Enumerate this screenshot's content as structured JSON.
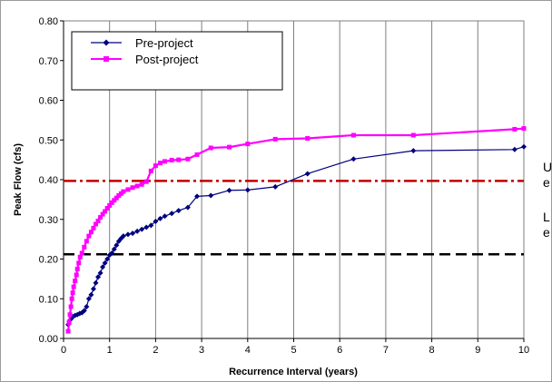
{
  "chart_data": {
    "type": "line",
    "title": "",
    "xlabel": "Recurrence Interval (years)",
    "ylabel": "Peak Flow (cfs)",
    "xlim": [
      0,
      10
    ],
    "ylim": [
      0,
      0.8
    ],
    "x_ticks": [
      "0",
      "1",
      "2",
      "3",
      "4",
      "5",
      "6",
      "7",
      "8",
      "9",
      "10"
    ],
    "y_ticks": [
      "0.00",
      "0.10",
      "0.20",
      "0.30",
      "0.40",
      "0.50",
      "0.60",
      "0.70",
      "0.80"
    ],
    "grid": "vertical gridlines",
    "legend_position": "top-left",
    "series": [
      {
        "name": "Pre-project",
        "color": "#000080",
        "marker": "diamond",
        "points": [
          [
            0.1,
            0.035
          ],
          [
            0.13,
            0.045
          ],
          [
            0.17,
            0.05
          ],
          [
            0.2,
            0.055
          ],
          [
            0.25,
            0.058
          ],
          [
            0.3,
            0.06
          ],
          [
            0.35,
            0.063
          ],
          [
            0.4,
            0.065
          ],
          [
            0.45,
            0.07
          ],
          [
            0.5,
            0.08
          ],
          [
            0.55,
            0.1
          ],
          [
            0.6,
            0.11
          ],
          [
            0.65,
            0.125
          ],
          [
            0.7,
            0.14
          ],
          [
            0.75,
            0.155
          ],
          [
            0.8,
            0.165
          ],
          [
            0.85,
            0.18
          ],
          [
            0.9,
            0.19
          ],
          [
            0.95,
            0.2
          ],
          [
            1.0,
            0.21
          ],
          [
            1.05,
            0.215
          ],
          [
            1.1,
            0.225
          ],
          [
            1.15,
            0.235
          ],
          [
            1.2,
            0.245
          ],
          [
            1.25,
            0.252
          ],
          [
            1.3,
            0.258
          ],
          [
            1.4,
            0.262
          ],
          [
            1.5,
            0.265
          ],
          [
            1.6,
            0.27
          ],
          [
            1.7,
            0.275
          ],
          [
            1.8,
            0.28
          ],
          [
            1.9,
            0.285
          ],
          [
            2.0,
            0.295
          ],
          [
            2.1,
            0.302
          ],
          [
            2.2,
            0.308
          ],
          [
            2.35,
            0.315
          ],
          [
            2.5,
            0.322
          ],
          [
            2.7,
            0.33
          ],
          [
            2.9,
            0.358
          ],
          [
            3.2,
            0.36
          ],
          [
            3.6,
            0.373
          ],
          [
            4.0,
            0.374
          ],
          [
            4.6,
            0.382
          ],
          [
            5.3,
            0.415
          ],
          [
            6.3,
            0.452
          ],
          [
            7.6,
            0.473
          ],
          [
            9.8,
            0.476
          ],
          [
            10.0,
            0.483
          ]
        ]
      },
      {
        "name": "Post-project",
        "color": "#ff00ff",
        "marker": "square",
        "points": [
          [
            0.1,
            0.018
          ],
          [
            0.12,
            0.04
          ],
          [
            0.14,
            0.06
          ],
          [
            0.16,
            0.08
          ],
          [
            0.18,
            0.1
          ],
          [
            0.2,
            0.115
          ],
          [
            0.22,
            0.13
          ],
          [
            0.25,
            0.145
          ],
          [
            0.28,
            0.16
          ],
          [
            0.3,
            0.175
          ],
          [
            0.33,
            0.19
          ],
          [
            0.36,
            0.205
          ],
          [
            0.4,
            0.215
          ],
          [
            0.45,
            0.23
          ],
          [
            0.5,
            0.245
          ],
          [
            0.55,
            0.258
          ],
          [
            0.6,
            0.268
          ],
          [
            0.65,
            0.278
          ],
          [
            0.7,
            0.288
          ],
          [
            0.75,
            0.296
          ],
          [
            0.8,
            0.305
          ],
          [
            0.85,
            0.313
          ],
          [
            0.9,
            0.32
          ],
          [
            0.95,
            0.328
          ],
          [
            1.0,
            0.335
          ],
          [
            1.05,
            0.342
          ],
          [
            1.1,
            0.348
          ],
          [
            1.15,
            0.354
          ],
          [
            1.2,
            0.36
          ],
          [
            1.25,
            0.365
          ],
          [
            1.3,
            0.37
          ],
          [
            1.4,
            0.375
          ],
          [
            1.5,
            0.38
          ],
          [
            1.6,
            0.384
          ],
          [
            1.7,
            0.388
          ],
          [
            1.8,
            0.395
          ],
          [
            1.9,
            0.422
          ],
          [
            2.0,
            0.435
          ],
          [
            2.1,
            0.442
          ],
          [
            2.2,
            0.446
          ],
          [
            2.35,
            0.449
          ],
          [
            2.5,
            0.45
          ],
          [
            2.7,
            0.452
          ],
          [
            2.9,
            0.463
          ],
          [
            3.2,
            0.48
          ],
          [
            3.6,
            0.482
          ],
          [
            4.0,
            0.49
          ],
          [
            4.6,
            0.502
          ],
          [
            5.3,
            0.504
          ],
          [
            6.3,
            0.512
          ],
          [
            7.6,
            0.512
          ],
          [
            9.8,
            0.527
          ],
          [
            10.0,
            0.529
          ]
        ]
      }
    ],
    "reference_lines": [
      {
        "y": 0.397,
        "color": "#c00000",
        "style": "dash-dot"
      },
      {
        "y": 0.212,
        "color": "#000000",
        "style": "dashed"
      }
    ]
  },
  "side_notes": {
    "upper": "U\ne",
    "lower": "L\ne"
  }
}
